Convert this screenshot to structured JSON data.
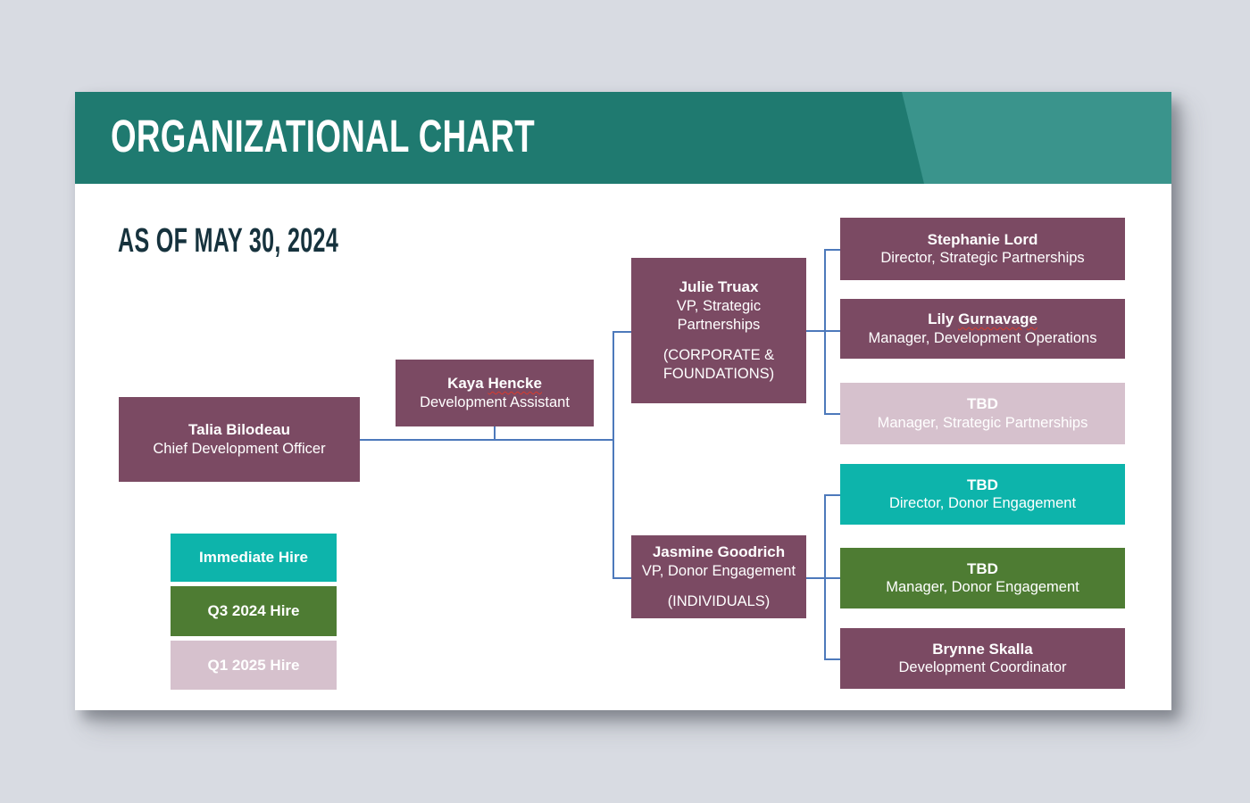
{
  "slide": {
    "title": "ORGANIZATIONAL CHART",
    "as_of": "AS OF MAY 30, 2024",
    "nodes": {
      "talia": {
        "name_pre": "Talia Bilodeau",
        "name_wavy": "",
        "title": "Chief Development Officer"
      },
      "kaya": {
        "name_pre": "Kaya ",
        "name_wavy": "Hencke",
        "title": "Development Assistant"
      },
      "julie": {
        "name_pre": "Julie Truax",
        "name_wavy": "",
        "title": "VP, Strategic Partnerships",
        "subtitle": "(CORPORATE & FOUNDATIONS)"
      },
      "jasmine": {
        "name_pre": "Jasmine Goodrich",
        "name_wavy": "",
        "title": "VP, Donor Engagement",
        "subtitle": "(INDIVIDUALS)"
      },
      "stephanie": {
        "name_pre": "Stephanie Lord",
        "name_wavy": "",
        "title": "Director, Strategic Partnerships"
      },
      "lily": {
        "name_pre": "Lily ",
        "name_wavy": "Gurnavage",
        "title": "Manager, Development Operations"
      },
      "tbd_mgr_sp": {
        "name_pre": "TBD",
        "name_wavy": "",
        "title": "Manager, Strategic Partnerships"
      },
      "tbd_dir_de": {
        "name_pre": "TBD",
        "name_wavy": "",
        "title": "Director, Donor Engagement"
      },
      "tbd_mgr_de": {
        "name_pre": "TBD",
        "name_wavy": "",
        "title": "Manager, Donor Engagement"
      },
      "brynne": {
        "name_pre": "Brynne Skalla",
        "name_wavy": "",
        "title": "Development Coordinator"
      }
    },
    "legend": {
      "immediate": {
        "label": "Immediate Hire"
      },
      "q3": {
        "label": "Q3 2024 Hire"
      },
      "q1": {
        "label": "Q1 2025 Hire"
      }
    },
    "edges": [
      [
        "talia",
        "julie"
      ],
      [
        "talia",
        "jasmine"
      ],
      [
        "kaya",
        "talia-connector"
      ],
      [
        "julie",
        "stephanie"
      ],
      [
        "julie",
        "lily"
      ],
      [
        "julie",
        "tbd_mgr_sp"
      ],
      [
        "jasmine",
        "tbd_dir_de"
      ],
      [
        "jasmine",
        "tbd_mgr_de"
      ],
      [
        "jasmine",
        "brynne"
      ]
    ],
    "colors": {
      "header_teal": "#1f7a70",
      "header_teal_light": "#3a948c",
      "plum": "#7b4a63",
      "dusty_pink": "#d6c1cd",
      "teal": "#0db4ab",
      "green": "#4e7c33",
      "connector_blue": "#4d79bb",
      "subtitle_navy": "#16323d",
      "page_background": "#d8dbe2",
      "spellcheck_red": "#d83b2e"
    }
  }
}
